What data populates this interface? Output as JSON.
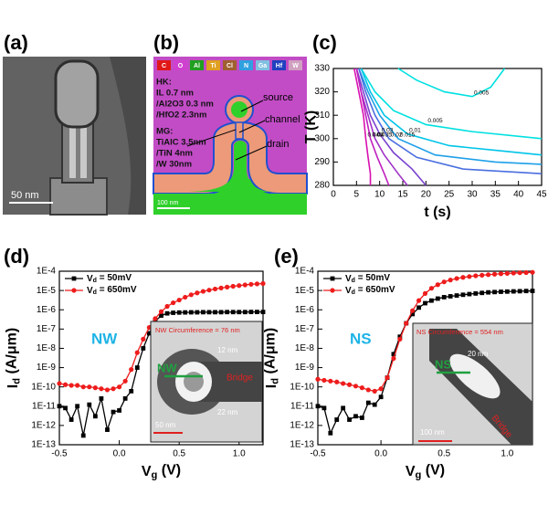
{
  "panels": {
    "a": {
      "label": "(a)",
      "scale_bar": "50 nm"
    },
    "b": {
      "label": "(b)",
      "elements": [
        "C",
        "O",
        "Al",
        "Ti",
        "Cl",
        "N",
        "Ga",
        "Hf",
        "W"
      ],
      "hk": [
        "HK:",
        "IL 0.7 nm",
        "/Al2O3 0.3 nm",
        "/HfO2 2.3nm"
      ],
      "mg": [
        "MG:",
        "TiAlC 3.5nm",
        "/TiN 4nm",
        "/W 30nm"
      ],
      "regions": [
        "source",
        "channel",
        "drain"
      ],
      "scale_bar": "100 nm"
    },
    "c": {
      "label": "(c)"
    },
    "d": {
      "label": "(d)",
      "inset": {
        "title": "NW  Circumference = 76 nm",
        "labels": [
          "12 nm",
          "22 nm",
          "Bridge",
          "NW",
          "50 nm"
        ]
      }
    },
    "e": {
      "label": "(e)",
      "inset": {
        "title": "NS Circumference = 554 nm",
        "labels": [
          "20 nm",
          "NS",
          "Bridge",
          "100 nm"
        ]
      }
    }
  },
  "chart_data": [
    {
      "type": "contour",
      "xlabel": "t (s)",
      "ylabel": "T (K)",
      "xlim": [
        0,
        45
      ],
      "ylim": [
        280,
        330
      ],
      "xticks": [
        0,
        5,
        10,
        15,
        20,
        25,
        30,
        35,
        40,
        45
      ],
      "yticks": [
        280,
        290,
        300,
        310,
        320,
        330
      ],
      "series": [
        {
          "name": "0.005",
          "color": "#00e0e0",
          "x": [
            14,
            18,
            24,
            30,
            34,
            37
          ],
          "y": [
            330,
            325,
            320,
            318,
            322,
            330
          ]
        },
        {
          "name": "0.005",
          "color": "#00e0e0",
          "x": [
            6,
            9,
            13,
            20,
            30,
            45
          ],
          "y": [
            330,
            320,
            312,
            306,
            303,
            300
          ]
        },
        {
          "name": "0.01",
          "color": "#00c4e8",
          "x": [
            6,
            8,
            11,
            16,
            25,
            35,
            45
          ],
          "y": [
            330,
            320,
            310,
            302,
            297,
            295,
            293
          ]
        },
        {
          "name": "0.015",
          "color": "#1ea0e8",
          "x": [
            5.5,
            7.5,
            10,
            14,
            22,
            35,
            45
          ],
          "y": [
            330,
            320,
            310,
            300,
            293,
            290,
            289
          ]
        },
        {
          "name": "0.02",
          "color": "#4a6ee0",
          "x": [
            5.5,
            7,
            9,
            12,
            18,
            28,
            45
          ],
          "y": [
            330,
            320,
            310,
            300,
            292,
            287,
            285
          ]
        },
        {
          "name": "0.03",
          "color": "#7a44d0",
          "x": [
            5,
            6.5,
            8,
            10,
            13,
            17,
            20
          ],
          "y": [
            330,
            320,
            310,
            302,
            294,
            287,
            280
          ]
        },
        {
          "name": "0.035",
          "color": "#a032c8",
          "x": [
            5,
            6,
            7.5,
            9,
            11,
            14,
            16
          ],
          "y": [
            330,
            320,
            310,
            300,
            293,
            285,
            280
          ]
        },
        {
          "name": "0.04",
          "color": "#c020c0",
          "x": [
            5,
            6,
            7,
            8,
            9.5,
            11,
            12
          ],
          "y": [
            330,
            320,
            310,
            300,
            292,
            285,
            280
          ]
        },
        {
          "name": "0.045",
          "color": "#d810b0",
          "x": [
            4.5,
            5.5,
            6.5,
            7,
            7.5,
            8,
            8
          ],
          "y": [
            330,
            320,
            310,
            300,
            292,
            285,
            280
          ]
        }
      ]
    },
    {
      "type": "line",
      "xlabel": "Vg (V)",
      "ylabel": "Id (A/μm)",
      "annotation": "NW",
      "legend": "upper left",
      "yscale": "log",
      "xlim": [
        -0.5,
        1.2
      ],
      "ylim": [
        1e-13,
        0.0001
      ],
      "xticks": [
        -0.5,
        {
          "value": 0,
          "label": "0.0"
        },
        0.5,
        {
          "value": 1,
          "label": "1.0"
        }
      ],
      "yticks": [
        {
          "value": 1e-13,
          "label": "1E-13"
        },
        {
          "value": 1e-12,
          "label": "1E-12"
        },
        {
          "value": 1e-11,
          "label": "1E-11"
        },
        {
          "value": 1e-10,
          "label": "1E-10"
        },
        {
          "value": 1e-09,
          "label": "1E-9"
        },
        {
          "value": 1e-08,
          "label": "1E-8"
        },
        {
          "value": 1e-07,
          "label": "1E-7"
        },
        {
          "value": 1e-06,
          "label": "1E-6"
        },
        {
          "value": 1e-05,
          "label": "1E-5"
        },
        {
          "value": 0.0001,
          "label": "1E-4"
        }
      ],
      "x": [
        -0.5,
        -0.45,
        -0.4,
        -0.35,
        -0.3,
        -0.25,
        -0.2,
        -0.15,
        -0.1,
        -0.05,
        0,
        0.05,
        0.1,
        0.15,
        0.2,
        0.25,
        0.3,
        0.35,
        0.4,
        0.45,
        0.5,
        0.55,
        0.6,
        0.65,
        0.7,
        0.75,
        0.8,
        0.85,
        0.9,
        0.95,
        1,
        1.05,
        1.1,
        1.15,
        1.2
      ],
      "series": [
        {
          "name": "Vd = 50mV",
          "color": "#000000",
          "marker": "square",
          "values": [
            1e-11,
            8e-12,
            2e-12,
            1e-11,
            3e-13,
            1.2e-11,
            3e-12,
            2.5e-11,
            6e-13,
            5e-12,
            6e-12,
            2.5e-11,
            6e-11,
            1e-09,
            1e-08,
            6e-08,
            2.5e-07,
            5e-07,
            6.5e-07,
            7e-07,
            7.2e-07,
            7.3e-07,
            7.4e-07,
            7.4e-07,
            7.5e-07,
            7.5e-07,
            7.5e-07,
            7.5e-07,
            7.6e-07,
            7.6e-07,
            7.6e-07,
            7.6e-07,
            7.7e-07,
            7.7e-07,
            7.7e-07
          ]
        },
        {
          "name": "Vd = 650mV",
          "color": "#ee1c1c",
          "marker": "circle",
          "values": [
            1.5e-10,
            1.3e-10,
            1.2e-10,
            1.2e-10,
            1e-10,
            1e-10,
            9e-11,
            8e-11,
            7e-11,
            8e-11,
            1e-10,
            2e-10,
            8e-10,
            6e-09,
            3e-08,
            1.2e-07,
            3.5e-07,
            8e-07,
            1.5e-06,
            2.3e-06,
            3.2e-06,
            4.5e-06,
            6e-06,
            7.5e-06,
            9e-06,
            1.05e-05,
            1.2e-05,
            1.35e-05,
            1.5e-05,
            1.65e-05,
            1.8e-05,
            1.95e-05,
            2.1e-05,
            2.2e-05,
            2.3e-05
          ]
        }
      ]
    },
    {
      "type": "line",
      "xlabel": "Vg (V)",
      "ylabel": "Id (A/μm)",
      "annotation": "NS",
      "legend": "upper left",
      "yscale": "log",
      "xlim": [
        -0.5,
        1.2
      ],
      "ylim": [
        1e-13,
        0.0001
      ],
      "xticks": [
        -0.5,
        {
          "value": 0,
          "label": "0.0"
        },
        0.5,
        {
          "value": 1,
          "label": "1.0"
        }
      ],
      "yticks": [
        {
          "value": 1e-13,
          "label": "1E-13"
        },
        {
          "value": 1e-12,
          "label": "1E-12"
        },
        {
          "value": 1e-11,
          "label": "1E-11"
        },
        {
          "value": 1e-10,
          "label": "1E-10"
        },
        {
          "value": 1e-09,
          "label": "1E-9"
        },
        {
          "value": 1e-08,
          "label": "1E-8"
        },
        {
          "value": 1e-07,
          "label": "1E-7"
        },
        {
          "value": 1e-06,
          "label": "1E-6"
        },
        {
          "value": 1e-05,
          "label": "1E-5"
        },
        {
          "value": 0.0001,
          "label": "1E-4"
        }
      ],
      "x": [
        -0.5,
        -0.45,
        -0.4,
        -0.35,
        -0.3,
        -0.25,
        -0.2,
        -0.15,
        -0.1,
        -0.05,
        0,
        0.05,
        0.1,
        0.15,
        0.2,
        0.25,
        0.3,
        0.35,
        0.4,
        0.45,
        0.5,
        0.55,
        0.6,
        0.65,
        0.7,
        0.75,
        0.8,
        0.85,
        0.9,
        0.95,
        1,
        1.05,
        1.1,
        1.15,
        1.2
      ],
      "series": [
        {
          "name": "Vd = 50mV",
          "color": "#000000",
          "marker": "square",
          "values": [
            1e-11,
            8e-12,
            4e-13,
            2e-12,
            8e-12,
            2e-12,
            3e-12,
            2.5e-12,
            1.5e-11,
            1.2e-11,
            3e-11,
            3e-10,
            5e-09,
            4e-08,
            2e-07,
            6e-07,
            1.3e-06,
            2.2e-06,
            3e-06,
            3.8e-06,
            4.5e-06,
            5e-06,
            5.5e-06,
            6e-06,
            6.5e-06,
            7e-06,
            7.5e-06,
            8e-06,
            8.3e-06,
            8.6e-06,
            8.8e-06,
            9e-06,
            9.2e-06,
            9.4e-06,
            9.5e-06
          ]
        },
        {
          "name": "Vd = 650mV",
          "color": "#ee1c1c",
          "marker": "circle",
          "values": [
            2.5e-10,
            2.2e-10,
            2e-10,
            1.8e-10,
            1.5e-10,
            1.3e-10,
            1.1e-10,
            9e-11,
            7e-11,
            6e-11,
            8e-11,
            3e-10,
            3e-09,
            3e-08,
            2e-07,
            9e-07,
            3e-06,
            7e-06,
            1.3e-05,
            2e-05,
            2.8e-05,
            3.5e-05,
            4.2e-05,
            4.8e-05,
            5.3e-05,
            5.8e-05,
            6.2e-05,
            6.6e-05,
            7e-05,
            7.4e-05,
            7.7e-05,
            8e-05,
            8.3e-05,
            8.5e-05,
            8.8e-05
          ]
        }
      ]
    }
  ]
}
